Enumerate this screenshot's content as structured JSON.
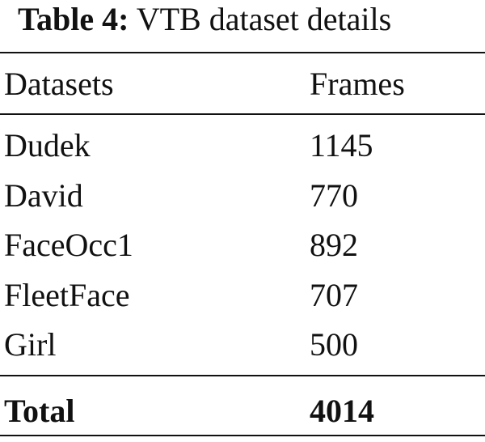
{
  "table": {
    "caption_label": "Table 4:",
    "caption": "VTB dataset details",
    "header": [
      "Datasets",
      "Frames"
    ],
    "rows": [
      [
        "Dudek",
        1145
      ],
      [
        "David",
        770
      ],
      [
        "FaceOcc1",
        892
      ],
      [
        "FleetFace",
        707
      ],
      [
        "Girl",
        500
      ]
    ],
    "total": [
      "Total",
      4014
    ]
  }
}
